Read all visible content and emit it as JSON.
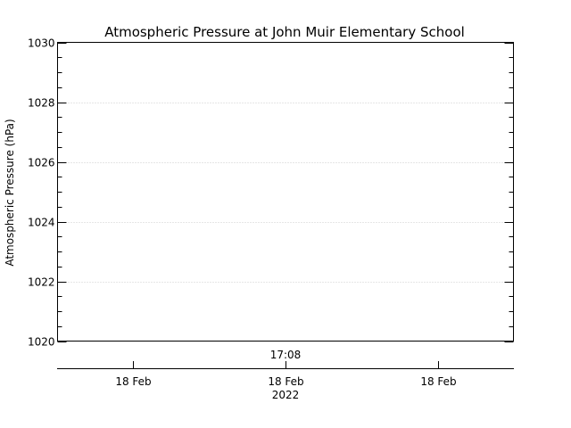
{
  "chart_data": {
    "type": "line",
    "title": "Atmospheric Pressure at John Muir Elementary School",
    "ylabel": "Atmospheric Pressure (hPa)",
    "xlabel": "",
    "ylim": [
      1020,
      1030
    ],
    "y_ticks": [
      1020,
      1022,
      1024,
      1026,
      1028,
      1030
    ],
    "y_tick_labels": [
      "1020",
      "1022",
      "1024",
      "1026",
      "1028",
      "1030"
    ],
    "grid": true,
    "top_axis_tick_label": "17:08",
    "x_ticks": [
      "18 Feb",
      "18 Feb",
      "18 Feb"
    ],
    "x_year_label": "2022",
    "series": []
  }
}
